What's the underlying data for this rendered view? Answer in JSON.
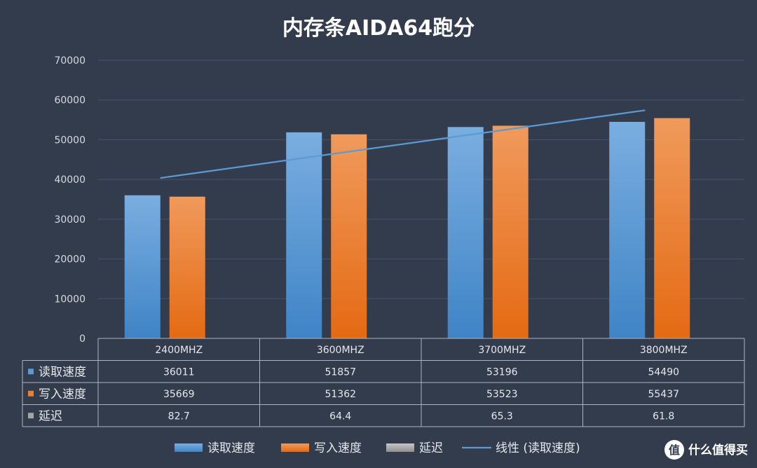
{
  "chart_data": {
    "type": "bar",
    "title": "内存条AIDA64跑分",
    "categories": [
      "2400MHZ",
      "3600MHZ",
      "3700MHZ",
      "3800MHZ"
    ],
    "ylim": [
      0,
      70000
    ],
    "yticks": [
      0,
      10000,
      20000,
      30000,
      40000,
      50000,
      60000,
      70000
    ],
    "grid": true,
    "series": [
      {
        "name": "读取速度",
        "values": [
          36011,
          51857,
          53196,
          54490
        ],
        "color": "#5b9bd5"
      },
      {
        "name": "写入速度",
        "values": [
          35669,
          51362,
          53523,
          55437
        ],
        "color": "#ed7d31"
      },
      {
        "name": "延迟",
        "values": [
          82.7,
          64.4,
          65.3,
          61.8
        ],
        "color": "#a5a5a5"
      }
    ],
    "table_values": [
      [
        "36011",
        "51857",
        "53196",
        "54490"
      ],
      [
        "35669",
        "51362",
        "53523",
        "55437"
      ],
      [
        "82.7",
        "64.4",
        "65.3",
        "61.8"
      ]
    ],
    "trendline": {
      "name": "线性 (读取速度)",
      "of_series": "读取速度",
      "type": "linear",
      "color": "#5b9bd5"
    },
    "legend_position": "bottom"
  },
  "watermark": "值 什么值得买"
}
